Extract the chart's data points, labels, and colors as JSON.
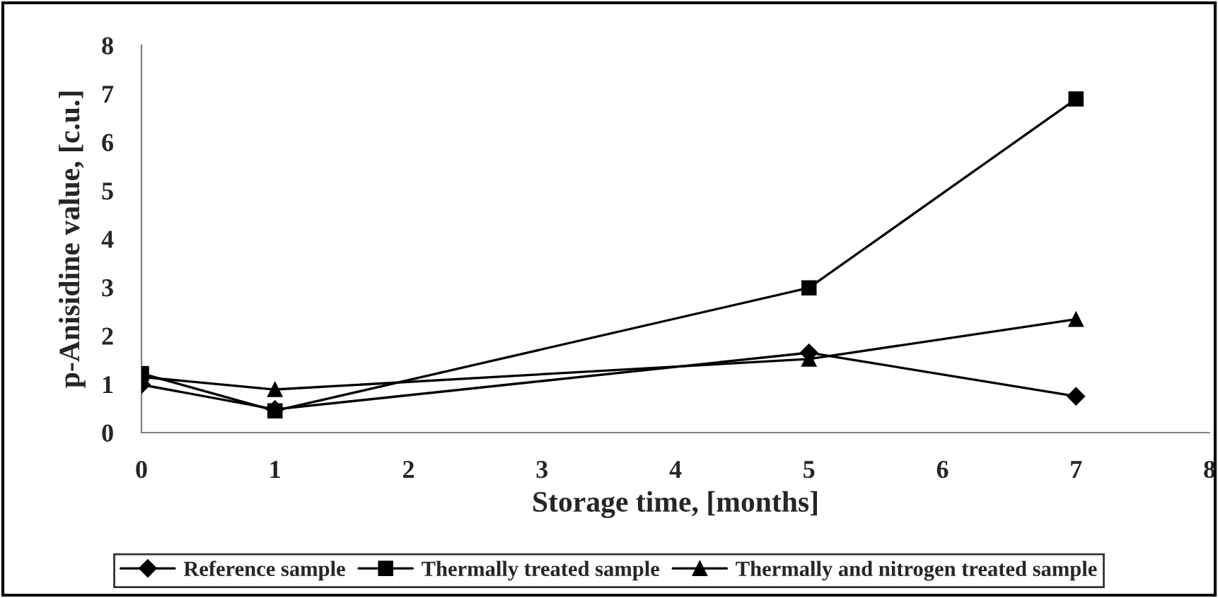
{
  "chart_data": {
    "type": "line",
    "xlabel": "Storage time, [months]",
    "ylabel": "p-Anisidine value, [c.u.]",
    "x": [
      0,
      1,
      5,
      7
    ],
    "series": [
      {
        "name": "Reference sample",
        "color": "#000000",
        "marker": "diamond",
        "values": [
          0.99,
          0.48,
          1.65,
          0.75
        ]
      },
      {
        "name": "Thermally treated sample",
        "color": "#000000",
        "marker": "square",
        "values": [
          1.22,
          0.45,
          2.99,
          6.89
        ]
      },
      {
        "name": "Thermally and nitrogen treated sample",
        "color": "#000000",
        "marker": "triangle",
        "values": [
          1.15,
          0.89,
          1.52,
          2.34
        ]
      }
    ],
    "xlim": [
      0,
      8
    ],
    "xticks": [
      0,
      1,
      2,
      3,
      4,
      5,
      6,
      7,
      8
    ],
    "ylim": [
      0,
      8
    ],
    "yticks": [
      0,
      1,
      2,
      3,
      4,
      5,
      6,
      7,
      8
    ],
    "grid": false,
    "legend": "bottom",
    "line_style": "solid"
  }
}
